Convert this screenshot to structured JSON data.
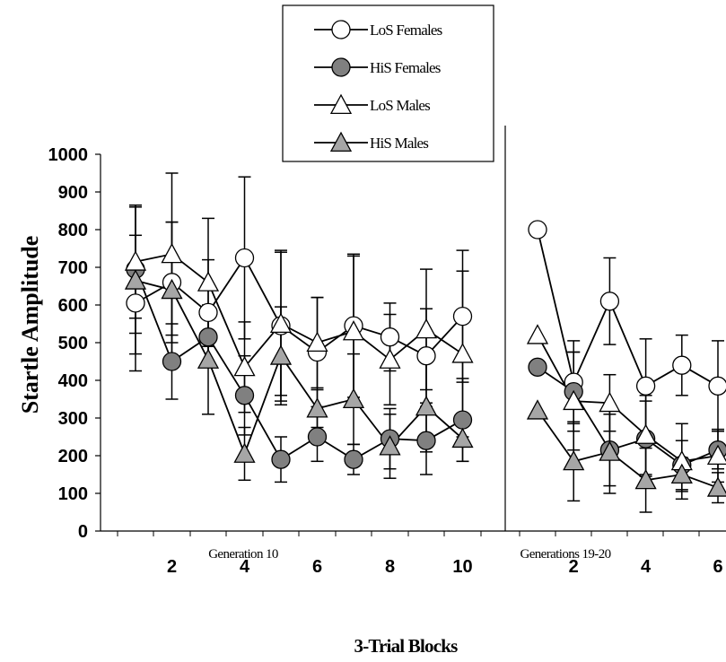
{
  "chart_data": {
    "type": "line",
    "ylabel": "Startle Amplitude",
    "xlabel": "3-Trial Blocks",
    "ylim": [
      0,
      1000
    ],
    "yticks": [
      "0",
      "100",
      "200",
      "300",
      "400",
      "500",
      "600",
      "700",
      "800",
      "900",
      "1000"
    ],
    "legend_position": "top-center",
    "colors": {
      "white": "#ffffff",
      "dark_gray": "#808080",
      "light_gray": "#a6a6a6",
      "line": "#000000"
    },
    "panels": [
      {
        "subtitle": "Generation 10",
        "x": [
          1,
          2,
          3,
          4,
          5,
          6,
          7,
          8,
          9,
          10
        ],
        "xticks": [
          "2",
          "4",
          "6",
          "8",
          "10"
        ],
        "series": [
          {
            "name": "LoS Females",
            "marker": "circle",
            "fill": "white",
            "values": [
              605,
              660,
              580,
              725,
              545,
              475,
              545,
              515,
              465,
              570
            ],
            "errors": [
              180,
              160,
              140,
              215,
              200,
              145,
              190,
              90,
              125,
              175
            ]
          },
          {
            "name": "HiS Females",
            "marker": "circle",
            "fill": "dark_gray",
            "values": [
              695,
              450,
              515,
              360,
              190,
              250,
              190,
              245,
              240,
              295
            ],
            "errors": [
              170,
              100,
              80,
              105,
              60,
              65,
              40,
              80,
              90,
              110
            ]
          },
          {
            "name": "LoS Males",
            "marker": "triangle",
            "fill": "white",
            "values": [
              715,
              735,
              660,
              435,
              550,
              500,
              530,
              455,
              535,
              470
            ],
            "errors": [
              150,
              215,
              170,
              120,
              190,
              120,
              200,
              120,
              160,
              220
            ]
          },
          {
            "name": "HiS Males",
            "marker": "triangle",
            "fill": "light_gray",
            "values": [
              665,
              640,
              455,
              205,
              465,
              325,
              350,
              225,
              330,
              245
            ],
            "errors": [
              195,
              180,
              145,
              70,
              130,
              50,
              120,
              85,
              120,
              60
            ]
          }
        ]
      },
      {
        "subtitle": "Generations 19-20",
        "x": [
          1,
          2,
          3,
          4,
          5,
          6
        ],
        "xticks": [
          "2",
          "4",
          "6"
        ],
        "series": [
          {
            "name": "LoS Females",
            "marker": "circle",
            "fill": "white",
            "values": [
              800,
              395,
              610,
              385,
              440,
              385
            ],
            "errors": [
              0,
              110,
              115,
              125,
              80,
              120
            ]
          },
          {
            "name": "HiS Females",
            "marker": "circle",
            "fill": "dark_gray",
            "values": [
              435,
              370,
              215,
              245,
              175,
              215
            ],
            "errors": [
              0,
              105,
              95,
              100,
              65,
              50
            ]
          },
          {
            "name": "LoS Males",
            "marker": "triangle",
            "fill": "white",
            "values": [
              520,
              345,
              340,
              255,
              185,
              200
            ],
            "errors": [
              0,
              130,
              75,
              105,
              100,
              70
            ]
          },
          {
            "name": "HiS Males",
            "marker": "triangle",
            "fill": "light_gray",
            "values": [
              320,
              185,
              210,
              135,
              150,
              115
            ],
            "errors": [
              0,
              105,
              110,
              85,
              45,
              40
            ]
          }
        ]
      }
    ]
  }
}
